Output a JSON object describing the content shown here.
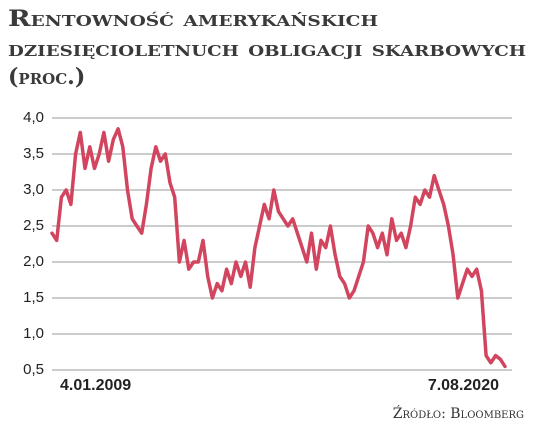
{
  "chart_data": {
    "type": "line",
    "title": [
      "Rentowność amerykańskich",
      "dziesięcioletnuch obligacji skarbowych",
      "(proc.)"
    ],
    "source": "Źródło: Bloomberg",
    "categories": [
      "4.01.2009",
      null,
      null,
      null,
      null,
      null,
      null,
      null,
      null,
      null,
      null,
      null,
      null,
      null,
      null,
      null,
      null,
      null,
      null,
      null,
      null,
      null,
      null,
      null,
      null,
      null,
      null,
      null,
      null,
      null,
      null,
      null,
      null,
      null,
      null,
      null,
      null,
      null,
      null,
      null,
      null,
      null,
      null,
      null,
      null,
      null,
      null,
      null,
      null,
      null,
      null,
      null,
      null,
      null,
      null,
      null,
      null,
      null,
      null,
      null,
      null,
      null,
      null,
      null,
      null,
      null,
      null,
      null,
      null,
      null,
      null,
      null,
      null,
      null,
      null,
      null,
      null,
      null,
      null,
      null,
      null,
      null,
      null,
      null,
      null,
      null,
      null,
      null,
      null,
      null,
      null,
      null,
      null,
      null,
      null,
      null,
      "7.08.2020"
    ],
    "values": [
      2.4,
      2.3,
      2.9,
      3.0,
      2.8,
      3.5,
      3.8,
      3.3,
      3.6,
      3.3,
      3.5,
      3.8,
      3.4,
      3.7,
      3.85,
      3.6,
      3.0,
      2.6,
      2.5,
      2.4,
      2.8,
      3.3,
      3.6,
      3.4,
      3.5,
      3.1,
      2.9,
      2.0,
      2.3,
      1.9,
      2.0,
      2.0,
      2.3,
      1.8,
      1.5,
      1.7,
      1.6,
      1.9,
      1.7,
      2.0,
      1.8,
      2.0,
      1.65,
      2.2,
      2.5,
      2.8,
      2.6,
      3.0,
      2.7,
      2.6,
      2.5,
      2.6,
      2.4,
      2.2,
      2.0,
      2.4,
      1.9,
      2.3,
      2.2,
      2.5,
      2.1,
      1.8,
      1.7,
      1.5,
      1.6,
      1.8,
      2.0,
      2.5,
      2.4,
      2.2,
      2.4,
      2.1,
      2.6,
      2.3,
      2.4,
      2.2,
      2.5,
      2.9,
      2.8,
      3.0,
      2.9,
      3.2,
      3.0,
      2.8,
      2.5,
      2.1,
      1.5,
      1.7,
      1.9,
      1.8,
      1.9,
      1.6,
      0.7,
      0.6,
      0.7,
      0.65,
      0.55
    ],
    "color": "#d2455f",
    "ylim": [
      0.5,
      4.0
    ],
    "yticks": [
      {
        "value": 0.5,
        "label": "0,5"
      },
      {
        "value": 1.0,
        "label": "1,0"
      },
      {
        "value": 1.5,
        "label": "1,5"
      },
      {
        "value": 2.0,
        "label": "2,0"
      },
      {
        "value": 2.5,
        "label": "2,5"
      },
      {
        "value": 3.0,
        "label": "3,0"
      },
      {
        "value": 3.5,
        "label": "3,5"
      },
      {
        "value": 4.0,
        "label": "4,0"
      }
    ],
    "grid": true
  }
}
